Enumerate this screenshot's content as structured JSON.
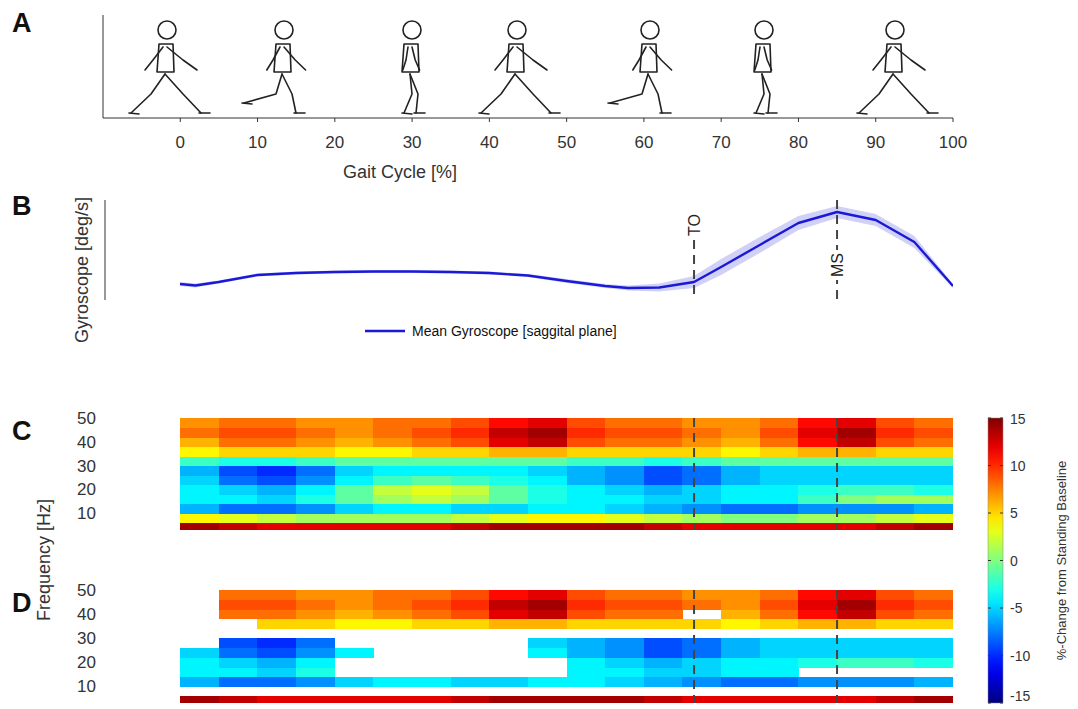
{
  "chart_data": [
    {
      "panel": "A",
      "type": "axis",
      "x_label": "Gait Cycle [%]",
      "xlim": [
        -10,
        100
      ],
      "xticks": [
        0,
        10,
        20,
        30,
        40,
        50,
        60,
        70,
        80,
        90,
        100
      ],
      "tick_labels": "x"
    },
    {
      "panel": "B",
      "type": "line",
      "y_label": "Gyroscope [deg/s]",
      "xlim": [
        0,
        100
      ],
      "ylim": [
        0,
        100
      ],
      "tick_labels": false,
      "legend": "bottom",
      "x": [
        0,
        2,
        5,
        10,
        15,
        20,
        25,
        30,
        35,
        40,
        45,
        50,
        55,
        58,
        62,
        66.5,
        70,
        75,
        80,
        85,
        90,
        95,
        100
      ],
      "series": [
        {
          "name": "Mean Gyroscope [saggital plane]",
          "color": "#1a1ad6",
          "values": [
            16,
            14.5,
            18,
            25,
            27,
            28,
            28.5,
            28.5,
            28,
            27,
            24.5,
            19,
            14,
            12,
            12.5,
            18,
            33,
            55,
            77,
            88,
            80,
            58,
            14
          ],
          "sd": [
            2,
            2,
            1.5,
            1.5,
            1.5,
            1.5,
            1.5,
            1.5,
            1.5,
            1.5,
            1.5,
            2,
            2,
            2.5,
            4,
            6,
            8,
            8,
            7,
            6,
            6,
            6,
            2
          ]
        }
      ],
      "annotations": [
        {
          "label": "TO",
          "x": 66.5
        },
        {
          "label": "MS",
          "x": 85
        }
      ]
    },
    {
      "panel": "C",
      "type": "heatmap",
      "y_label": "Frequency [Hz]",
      "xlim": [
        0,
        100
      ],
      "ylim": [
        3,
        50
      ],
      "yticks": [
        10,
        20,
        30,
        40,
        50
      ],
      "x_bins": [
        0,
        5,
        10,
        15,
        20,
        25,
        30,
        35,
        40,
        45,
        50,
        55,
        60,
        65,
        70,
        75,
        80,
        85,
        90,
        95,
        100
      ],
      "y_bins": [
        3,
        6,
        10,
        14,
        18,
        22,
        26,
        30,
        34,
        38,
        42,
        46,
        50
      ],
      "cells": [
        [
          14,
          13,
          12,
          12,
          12,
          12,
          12,
          13,
          14,
          14,
          14,
          14,
          13,
          12,
          12,
          12,
          12,
          12,
          13,
          14
        ],
        [
          4,
          3,
          2,
          1,
          1,
          1,
          1,
          2,
          3,
          4,
          4,
          3,
          2,
          1,
          0,
          0,
          1,
          1,
          2,
          3
        ],
        [
          -6,
          -8,
          -8,
          -7,
          -5,
          -4,
          -4,
          -5,
          -5,
          -4,
          -4,
          -5,
          -6,
          -7,
          -8,
          -8,
          -7,
          -7,
          -7,
          -6
        ],
        [
          -4,
          -4,
          -5,
          -3,
          -1,
          1,
          2,
          1,
          -1,
          -3,
          -4,
          -4,
          -5,
          -5,
          -4,
          -4,
          -2,
          0,
          1,
          1
        ],
        [
          -4,
          -5,
          -6,
          -4,
          -1,
          2,
          3,
          2,
          -1,
          -3,
          -4,
          -5,
          -6,
          -5,
          -4,
          -4,
          -3,
          -2,
          -2,
          -3
        ],
        [
          -5,
          -8,
          -9,
          -7,
          -4,
          -2,
          -1,
          -2,
          -3,
          -4,
          -6,
          -7,
          -9,
          -8,
          -6,
          -5,
          -5,
          -5,
          -5,
          -5
        ],
        [
          -6,
          -9,
          -10,
          -8,
          -5,
          -4,
          -4,
          -4,
          -4,
          -5,
          -6,
          -7,
          -9,
          -8,
          -6,
          -5,
          -5,
          -5,
          -5,
          -5
        ],
        [
          -2,
          -3,
          -3,
          -2,
          -1,
          -1,
          -1,
          -1,
          -1,
          -1,
          -2,
          -2,
          -3,
          -2,
          -1,
          -1,
          -1,
          -1,
          -1,
          -1
        ],
        [
          4,
          5,
          5,
          5,
          4,
          4,
          5,
          5,
          6,
          6,
          5,
          5,
          5,
          5,
          4,
          5,
          6,
          6,
          5,
          5
        ],
        [
          6,
          8,
          8,
          7,
          6,
          7,
          8,
          9,
          12,
          13,
          9,
          8,
          8,
          7,
          6,
          8,
          11,
          13,
          9,
          8
        ],
        [
          8,
          9,
          9,
          8,
          7,
          8,
          9,
          10,
          13,
          14,
          10,
          9,
          9,
          8,
          7,
          9,
          12,
          14,
          10,
          9
        ],
        [
          7,
          8,
          8,
          7,
          7,
          8,
          8,
          9,
          11,
          12,
          9,
          8,
          8,
          7,
          7,
          8,
          11,
          12,
          9,
          8
        ]
      ],
      "colorbar": {
        "label": "%-Change from Standing Baseline",
        "range": [
          -15,
          15
        ],
        "ticks": [
          -15,
          -10,
          -5,
          0,
          5,
          10,
          15
        ]
      }
    },
    {
      "panel": "D",
      "type": "heatmap",
      "xlim": [
        0,
        100
      ],
      "ylim": [
        3,
        50
      ],
      "yticks": [
        10,
        20,
        30,
        40,
        50
      ],
      "x_bins": [
        0,
        5,
        10,
        15,
        20,
        25,
        30,
        35,
        40,
        45,
        50,
        55,
        60,
        65,
        70,
        75,
        80,
        85,
        90,
        95,
        100
      ],
      "y_bins": [
        3,
        6,
        10,
        14,
        18,
        22,
        26,
        30,
        34,
        38,
        42,
        46,
        50
      ],
      "cells": [
        [
          14,
          13,
          12,
          12,
          12,
          12,
          12,
          13,
          14,
          14,
          14,
          14,
          13,
          12,
          12,
          12,
          12,
          12,
          13,
          14
        ],
        [
          null,
          null,
          null,
          null,
          null,
          null,
          null,
          null,
          null,
          null,
          null,
          null,
          null,
          null,
          null,
          null,
          null,
          null,
          null,
          null
        ],
        [
          -6,
          -8,
          -8,
          -7,
          -5,
          -4,
          -4,
          -5,
          -5,
          -4,
          -4,
          -5,
          -6,
          -7,
          -8,
          -8,
          -7,
          -7,
          -7,
          -6
        ],
        [
          -4,
          -4,
          -5,
          -3,
          null,
          null,
          null,
          null,
          null,
          null,
          -4,
          -4,
          -5,
          -5,
          -4,
          -4,
          null,
          null,
          null,
          null
        ],
        [
          -4,
          -5,
          -6,
          -4,
          null,
          null,
          null,
          null,
          null,
          null,
          -4,
          -5,
          -6,
          -5,
          -4,
          -4,
          -3,
          -2,
          -2,
          -3
        ],
        [
          -5,
          -8,
          -9,
          -7,
          -4,
          null,
          null,
          null,
          null,
          -4,
          -6,
          -7,
          -9,
          -8,
          -6,
          -5,
          -5,
          -5,
          -5,
          -5
        ],
        [
          null,
          -9,
          -10,
          -8,
          null,
          null,
          null,
          null,
          null,
          -5,
          -6,
          -7,
          -9,
          -8,
          -6,
          -5,
          -5,
          -5,
          -5,
          -5
        ],
        [
          null,
          null,
          null,
          null,
          null,
          null,
          null,
          null,
          null,
          null,
          null,
          null,
          null,
          null,
          null,
          null,
          null,
          null,
          null,
          null
        ],
        [
          null,
          null,
          5,
          5,
          4,
          4,
          5,
          5,
          6,
          6,
          5,
          5,
          5,
          5,
          4,
          5,
          6,
          6,
          5,
          5
        ],
        [
          null,
          8,
          8,
          7,
          6,
          7,
          8,
          9,
          12,
          13,
          9,
          8,
          8,
          null,
          6,
          8,
          11,
          13,
          9,
          8
        ],
        [
          null,
          9,
          9,
          8,
          7,
          8,
          9,
          10,
          13,
          14,
          10,
          9,
          9,
          8,
          7,
          9,
          12,
          14,
          10,
          9
        ],
        [
          null,
          8,
          8,
          7,
          7,
          8,
          8,
          9,
          11,
          12,
          9,
          8,
          8,
          7,
          7,
          8,
          11,
          12,
          9,
          8
        ]
      ]
    }
  ]
}
